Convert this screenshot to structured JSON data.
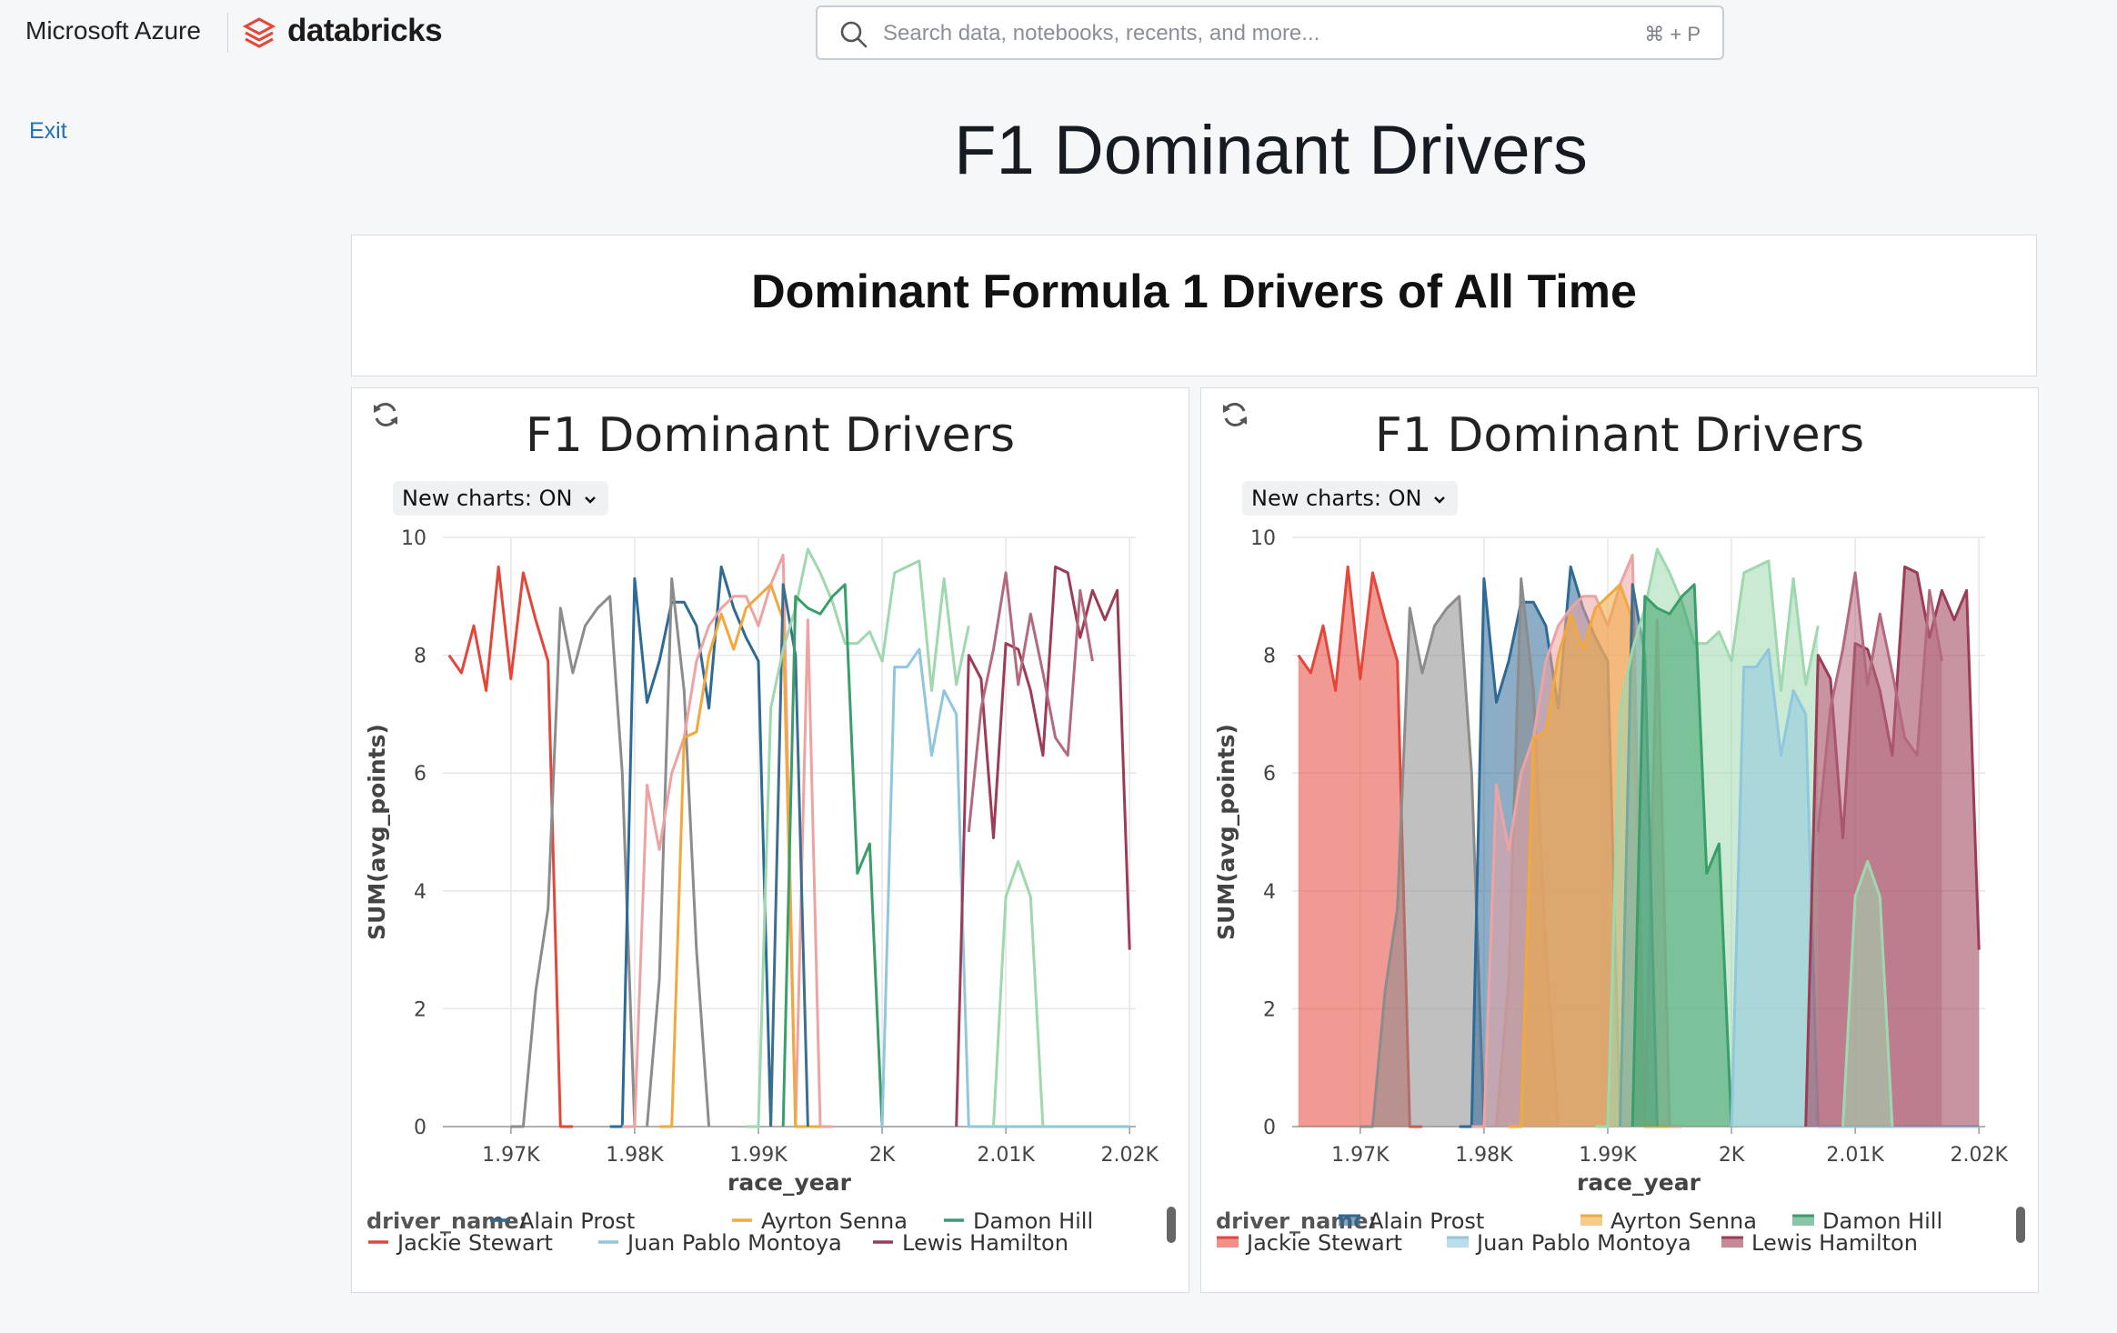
{
  "topbar": {
    "brand_microsoft": "Microsoft Azure",
    "brand_databricks": "databricks",
    "search_placeholder": "Search data, notebooks, recents, and more...",
    "search_shortcut": "⌘ + P"
  },
  "nav": {
    "exit_label": "Exit"
  },
  "page": {
    "title": "F1 Dominant Drivers"
  },
  "text_widget": {
    "title": "Dominant Formula 1 Drivers of All Time"
  },
  "colors": {
    "Alain Prost": "#2e6a96",
    "Ayrton Senna": "#f2a93b",
    "Damon Hill": "#3a9e6a",
    "Jackie Stewart": "#e4473a",
    "Juan Pablo Montoya": "#90c6de",
    "Lewis Hamilton": "#9c3c56",
    "gray": "#8c8c8c",
    "pink": "#eea3a3",
    "lightgreen": "#9fd8ae",
    "darkblue": "#3c6f8f",
    "rose": "#b46a7e"
  },
  "panels": [
    {
      "title": "F1 Dominant Drivers",
      "toggle_label": "New charts: ON",
      "refresh_icon": "refresh-icon",
      "legend_title": "driver_name:",
      "legend": [
        "Alain Prost",
        "Ayrton Senna",
        "Damon Hill",
        "Jackie Stewart",
        "Juan Pablo Montoya",
        "Lewis Hamilton"
      ]
    },
    {
      "title": "F1 Dominant Drivers",
      "toggle_label": "New charts: ON",
      "refresh_icon": "refresh-icon",
      "legend_title": "driver_name:",
      "legend": [
        "Alain Prost",
        "Ayrton Senna",
        "Damon Hill",
        "Jackie Stewart",
        "Juan Pablo Montoya",
        "Lewis Hamilton"
      ]
    }
  ],
  "chart_data": [
    {
      "type": "line",
      "title": "F1 Dominant Drivers",
      "xlabel": "race_year",
      "ylabel": "SUM(avg_points)",
      "xlim": [
        1964.5,
        2020.5
      ],
      "ylim": [
        0,
        10
      ],
      "x_ticks": [
        1970,
        1980,
        1990,
        2000,
        2010,
        2020
      ],
      "x_tick_labels": [
        "1.97K",
        "1.98K",
        "1.99K",
        "2K",
        "2.01K",
        "2.02K"
      ],
      "y_ticks": [
        0,
        2,
        4,
        6,
        8,
        10
      ],
      "grid": true,
      "legend_position": "bottom",
      "series": [
        {
          "color": "Jackie Stewart",
          "x": [
            1965,
            1966,
            1967,
            1968,
            1969,
            1970,
            1971,
            1972,
            1973,
            1974,
            1975
          ],
          "y": [
            8.0,
            7.7,
            8.5,
            7.4,
            9.5,
            7.6,
            9.4,
            8.6,
            7.9,
            0,
            0
          ]
        },
        {
          "color": "gray",
          "x": [
            1970,
            1971,
            1972,
            1973,
            1974,
            1975,
            1976,
            1977,
            1978,
            1979,
            1980
          ],
          "y": [
            0,
            0,
            2.3,
            3.7,
            8.8,
            7.7,
            8.5,
            8.8,
            9.0,
            6.0,
            0
          ]
        },
        {
          "color": "Alain Prost",
          "x": [
            1978,
            1979,
            1980,
            1981,
            1982,
            1983,
            1984,
            1985,
            1986,
            1987,
            1988,
            1989,
            1990,
            1991
          ],
          "y": [
            0,
            0,
            9.3,
            7.2,
            7.9,
            8.9,
            8.9,
            8.5,
            7.1,
            9.5,
            8.8,
            8.3,
            7.9,
            0
          ]
        },
        {
          "color": "gray",
          "x": [
            1981,
            1982,
            1983,
            1984,
            1985,
            1986
          ],
          "y": [
            0,
            2.5,
            9.3,
            7.4,
            3.0,
            0
          ]
        },
        {
          "color": "pink",
          "x": [
            1979,
            1980,
            1981,
            1982,
            1983,
            1984,
            1985,
            1986,
            1987,
            1988,
            1989,
            1990,
            1991,
            1992,
            1993,
            1994,
            1995,
            1996
          ],
          "y": [
            0,
            0,
            5.8,
            4.7,
            6.0,
            6.6,
            7.9,
            8.5,
            8.8,
            9.0,
            9.0,
            8.5,
            9.2,
            9.7,
            0,
            8.6,
            0,
            0
          ]
        },
        {
          "color": "Ayrton Senna",
          "x": [
            1982,
            1983,
            1984,
            1985,
            1986,
            1987,
            1988,
            1989,
            1990,
            1991,
            1992,
            1993,
            1994,
            1995
          ],
          "y": [
            0,
            0,
            6.6,
            6.7,
            8.0,
            8.7,
            8.1,
            8.8,
            9.0,
            9.2,
            8.6,
            0,
            0,
            0
          ]
        },
        {
          "color": "darkblue",
          "x": [
            1991,
            1992,
            1993,
            1994
          ],
          "y": [
            0,
            9.2,
            8.0,
            0
          ]
        },
        {
          "color": "lightgreen",
          "x": [
            1989,
            1990,
            1991,
            1992,
            1993,
            1994,
            1995,
            1996,
            1997,
            1998,
            1999,
            2000,
            2001,
            2002,
            2003,
            2004,
            2005,
            2006,
            2007
          ],
          "y": [
            0,
            0,
            7.1,
            8.1,
            8.8,
            9.8,
            9.4,
            8.9,
            8.2,
            8.2,
            8.4,
            7.9,
            9.4,
            9.5,
            9.6,
            7.4,
            9.3,
            7.5,
            8.5
          ]
        },
        {
          "color": "Damon Hill",
          "x": [
            1992,
            1993,
            1994,
            1995,
            1996,
            1997,
            1998,
            1999,
            2000
          ],
          "y": [
            0,
            9.0,
            8.8,
            8.7,
            9.0,
            9.2,
            4.3,
            4.8,
            0
          ]
        },
        {
          "color": "Juan Pablo Montoya",
          "x": [
            2000,
            2001,
            2002,
            2003,
            2004,
            2005,
            2006,
            2007,
            2008,
            2010,
            2020
          ],
          "y": [
            0,
            7.8,
            7.8,
            8.1,
            6.3,
            7.4,
            7.0,
            0,
            0,
            0,
            0
          ]
        },
        {
          "color": "Lewis Hamilton",
          "x": [
            2006,
            2007,
            2008,
            2009,
            2010,
            2011,
            2012,
            2013,
            2014,
            2015,
            2016,
            2017,
            2018,
            2019,
            2020
          ],
          "y": [
            0,
            8.0,
            7.6,
            4.9,
            8.2,
            8.1,
            7.4,
            6.3,
            9.5,
            9.4,
            8.3,
            9.1,
            8.6,
            9.1,
            3.0
          ]
        },
        {
          "color": "rose",
          "x": [
            2007,
            2008,
            2009,
            2010,
            2011,
            2012,
            2013,
            2014,
            2015,
            2016,
            2017
          ],
          "y": [
            5.0,
            7.1,
            8.1,
            9.4,
            7.5,
            8.7,
            7.7,
            6.6,
            6.3,
            9.1,
            7.9
          ]
        },
        {
          "color": "lightgreen",
          "x": [
            2009,
            2010,
            2011,
            2012,
            2013
          ],
          "y": [
            0,
            3.9,
            4.5,
            3.9,
            0
          ]
        }
      ]
    },
    {
      "type": "area",
      "title": "F1 Dominant Drivers",
      "xlabel": "race_year",
      "ylabel": "SUM(avg_points)",
      "xlim": [
        1964.5,
        2020.5
      ],
      "ylim": [
        0,
        10
      ],
      "x_ticks": [
        1970,
        1980,
        1990,
        2000,
        2010,
        2020
      ],
      "x_tick_labels": [
        "1.97K",
        "1.98K",
        "1.99K",
        "2K",
        "2.01K",
        "2.02K"
      ],
      "y_ticks": [
        0,
        2,
        4,
        6,
        8,
        10
      ],
      "grid": true,
      "legend_position": "bottom",
      "series_source": "same as line chart"
    }
  ]
}
